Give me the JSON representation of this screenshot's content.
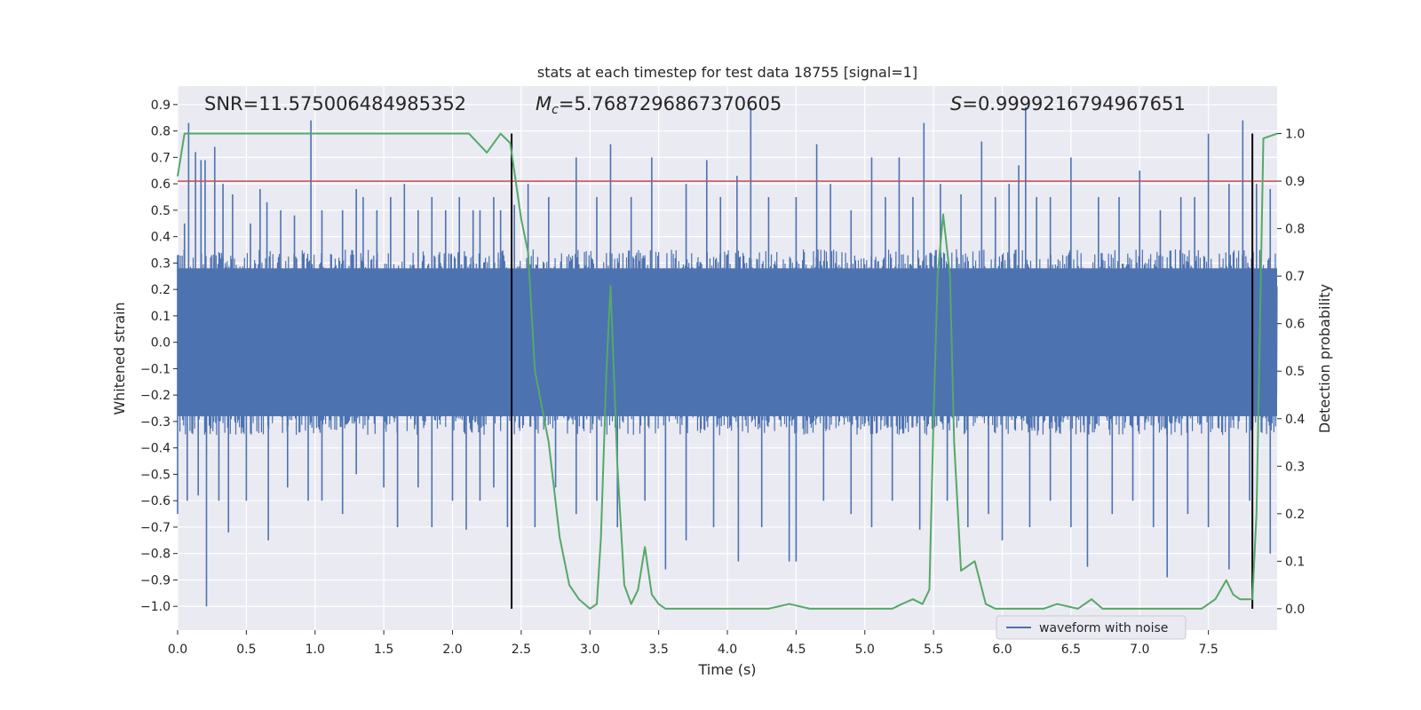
{
  "chart_data": {
    "type": "line",
    "title": "stats at each timestep for test data 18755 [signal=1]",
    "xlabel": "Time (s)",
    "ylabel_left": "Whitened strain",
    "ylabel_right": "Detection probability",
    "xlim": [
      0.0,
      8.0
    ],
    "ylim_left": [
      -1.09,
      0.97
    ],
    "ylim_right": [
      -0.045,
      1.1
    ],
    "grid": true,
    "legend": {
      "placement": "lower-right",
      "entries": [
        "waveform with noise"
      ]
    },
    "x_ticks": [
      "0.0",
      "0.5",
      "1.0",
      "1.5",
      "2.0",
      "2.5",
      "3.0",
      "3.5",
      "4.0",
      "4.5",
      "5.0",
      "5.5",
      "6.0",
      "6.5",
      "7.0",
      "7.5"
    ],
    "y_left_ticks": [
      "0.9",
      "0.8",
      "0.7",
      "0.6",
      "0.5",
      "0.4",
      "0.3",
      "0.2",
      "0.1",
      "0.0",
      "−0.1",
      "−0.2",
      "−0.3",
      "−0.4",
      "−0.5",
      "−0.6",
      "−0.7",
      "−0.8",
      "−0.9",
      "−1.0"
    ],
    "y_right_ticks": [
      "1.0",
      "0.9",
      "0.8",
      "0.7",
      "0.6",
      "0.5",
      "0.4",
      "0.3",
      "0.2",
      "0.1",
      "0.0"
    ],
    "annotations": {
      "snr": "SNR=11.575006484985352",
      "mc_symbol": "M",
      "mc_sub": "c",
      "mc_value": "=5.7687296867370605",
      "s_symbol": "S",
      "s_value": "=0.9999216794967651"
    },
    "threshold": {
      "value": 0.9,
      "axis": "right",
      "color": "#c44e52"
    },
    "vertical_lines": [
      2.43,
      7.82
    ],
    "waveform": {
      "name": "waveform with noise",
      "color": "#4c72b0",
      "bulk_amplitude": 0.32,
      "spikes_up": [
        [
          0.0,
          0.33
        ],
        [
          0.05,
          0.45
        ],
        [
          0.08,
          0.83
        ],
        [
          0.13,
          0.72
        ],
        [
          0.17,
          0.69
        ],
        [
          0.2,
          0.69
        ],
        [
          0.27,
          0.74
        ],
        [
          0.33,
          0.6
        ],
        [
          0.4,
          0.56
        ],
        [
          0.53,
          0.45
        ],
        [
          0.6,
          0.58
        ],
        [
          0.65,
          0.53
        ],
        [
          0.75,
          0.5
        ],
        [
          0.85,
          0.48
        ],
        [
          0.97,
          0.84
        ],
        [
          1.05,
          0.5
        ],
        [
          1.2,
          0.5
        ],
        [
          1.3,
          0.58
        ],
        [
          1.35,
          0.55
        ],
        [
          1.45,
          0.5
        ],
        [
          1.55,
          0.55
        ],
        [
          1.65,
          0.6
        ],
        [
          1.75,
          0.5
        ],
        [
          1.85,
          0.55
        ],
        [
          1.95,
          0.5
        ],
        [
          2.05,
          0.55
        ],
        [
          2.15,
          0.5
        ],
        [
          2.2,
          0.5
        ],
        [
          2.3,
          0.55
        ],
        [
          2.35,
          0.5
        ],
        [
          2.45,
          0.52
        ],
        [
          2.55,
          0.6
        ],
        [
          2.7,
          0.55
        ],
        [
          2.9,
          0.7
        ],
        [
          3.05,
          0.55
        ],
        [
          3.15,
          0.75
        ],
        [
          3.3,
          0.55
        ],
        [
          3.45,
          0.7
        ],
        [
          3.7,
          0.6
        ],
        [
          3.85,
          0.69
        ],
        [
          3.95,
          0.55
        ],
        [
          4.07,
          0.63
        ],
        [
          4.17,
          0.89
        ],
        [
          4.3,
          0.55
        ],
        [
          4.5,
          0.55
        ],
        [
          4.65,
          0.75
        ],
        [
          4.75,
          0.6
        ],
        [
          4.9,
          0.5
        ],
        [
          5.05,
          0.7
        ],
        [
          5.15,
          0.55
        ],
        [
          5.25,
          0.7
        ],
        [
          5.35,
          0.55
        ],
        [
          5.43,
          0.83
        ],
        [
          5.55,
          0.6
        ],
        [
          5.7,
          0.56
        ],
        [
          5.85,
          0.76
        ],
        [
          5.95,
          0.55
        ],
        [
          6.05,
          0.6
        ],
        [
          6.12,
          0.67
        ],
        [
          6.17,
          0.89
        ],
        [
          6.25,
          0.55
        ],
        [
          6.35,
          0.55
        ],
        [
          6.5,
          0.7
        ],
        [
          6.7,
          0.55
        ],
        [
          6.85,
          0.55
        ],
        [
          7.0,
          0.65
        ],
        [
          7.15,
          0.5
        ],
        [
          7.3,
          0.55
        ],
        [
          7.4,
          0.55
        ],
        [
          7.5,
          0.79
        ],
        [
          7.65,
          0.6
        ],
        [
          7.75,
          0.84
        ],
        [
          7.85,
          0.6
        ],
        [
          7.95,
          0.58
        ]
      ],
      "spikes_down": [
        [
          0.0,
          -0.65
        ],
        [
          0.07,
          -0.6
        ],
        [
          0.15,
          -0.58
        ],
        [
          0.21,
          -1.0
        ],
        [
          0.3,
          -0.6
        ],
        [
          0.37,
          -0.72
        ],
        [
          0.5,
          -0.6
        ],
        [
          0.66,
          -0.75
        ],
        [
          0.8,
          -0.55
        ],
        [
          0.95,
          -0.6
        ],
        [
          1.05,
          -0.6
        ],
        [
          1.2,
          -0.65
        ],
        [
          1.3,
          -0.5
        ],
        [
          1.5,
          -0.55
        ],
        [
          1.6,
          -0.7
        ],
        [
          1.75,
          -0.55
        ],
        [
          1.85,
          -0.7
        ],
        [
          2.0,
          -0.6
        ],
        [
          2.1,
          -0.71
        ],
        [
          2.2,
          -0.6
        ],
        [
          2.3,
          -0.55
        ],
        [
          2.4,
          -0.7
        ],
        [
          2.6,
          -0.7
        ],
        [
          2.75,
          -0.55
        ],
        [
          2.9,
          -0.65
        ],
        [
          3.05,
          -0.6
        ],
        [
          3.2,
          -0.7
        ],
        [
          3.4,
          -0.6
        ],
        [
          3.55,
          -0.86
        ],
        [
          3.7,
          -0.75
        ],
        [
          3.9,
          -0.7
        ],
        [
          4.08,
          -0.83
        ],
        [
          4.25,
          -0.7
        ],
        [
          4.45,
          -0.83
        ],
        [
          4.5,
          -0.83
        ],
        [
          4.7,
          -0.6
        ],
        [
          4.9,
          -0.65
        ],
        [
          5.05,
          -0.7
        ],
        [
          5.2,
          -0.6
        ],
        [
          5.4,
          -0.71
        ],
        [
          5.6,
          -0.6
        ],
        [
          5.75,
          -0.7
        ],
        [
          5.9,
          -0.65
        ],
        [
          6.0,
          -0.75
        ],
        [
          6.2,
          -0.7
        ],
        [
          6.35,
          -0.6
        ],
        [
          6.5,
          -0.7
        ],
        [
          6.62,
          -0.85
        ],
        [
          6.8,
          -0.65
        ],
        [
          6.95,
          -0.6
        ],
        [
          7.1,
          -0.7
        ],
        [
          7.2,
          -0.89
        ],
        [
          7.35,
          -0.65
        ],
        [
          7.5,
          -0.7
        ],
        [
          7.65,
          -0.86
        ],
        [
          7.8,
          -0.6
        ],
        [
          7.95,
          -0.8
        ]
      ]
    },
    "detection_probability": {
      "color": "#55a868",
      "x": [
        0.0,
        0.05,
        0.1,
        0.2,
        1.0,
        2.0,
        2.12,
        2.25,
        2.35,
        2.42,
        2.5,
        2.55,
        2.6,
        2.7,
        2.78,
        2.85,
        2.92,
        3.0,
        3.05,
        3.08,
        3.12,
        3.15,
        3.2,
        3.25,
        3.3,
        3.35,
        3.4,
        3.45,
        3.5,
        3.55,
        3.65,
        3.8,
        4.0,
        4.3,
        4.45,
        4.6,
        4.8,
        5.0,
        5.2,
        5.27,
        5.35,
        5.42,
        5.47,
        5.5,
        5.53,
        5.57,
        5.62,
        5.65,
        5.7,
        5.8,
        5.88,
        5.95,
        6.1,
        6.3,
        6.4,
        6.55,
        6.65,
        6.73,
        6.85,
        7.0,
        7.2,
        7.45,
        7.55,
        7.63,
        7.68,
        7.73,
        7.8,
        7.82,
        7.85,
        7.9,
        8.0
      ],
      "y": [
        0.91,
        1.0,
        1.0,
        1.0,
        1.0,
        1.0,
        1.0,
        0.96,
        1.0,
        0.98,
        0.82,
        0.75,
        0.5,
        0.35,
        0.15,
        0.05,
        0.02,
        0.0,
        0.01,
        0.15,
        0.5,
        0.68,
        0.3,
        0.05,
        0.01,
        0.04,
        0.13,
        0.03,
        0.01,
        0.0,
        0.0,
        0.0,
        0.0,
        0.0,
        0.01,
        0.0,
        0.0,
        0.0,
        0.0,
        0.01,
        0.02,
        0.01,
        0.04,
        0.4,
        0.7,
        0.83,
        0.7,
        0.35,
        0.08,
        0.1,
        0.01,
        0.0,
        0.0,
        0.0,
        0.01,
        0.0,
        0.02,
        0.0,
        0.0,
        0.0,
        0.0,
        0.0,
        0.02,
        0.06,
        0.03,
        0.02,
        0.02,
        0.02,
        0.2,
        0.99,
        1.0
      ]
    }
  }
}
